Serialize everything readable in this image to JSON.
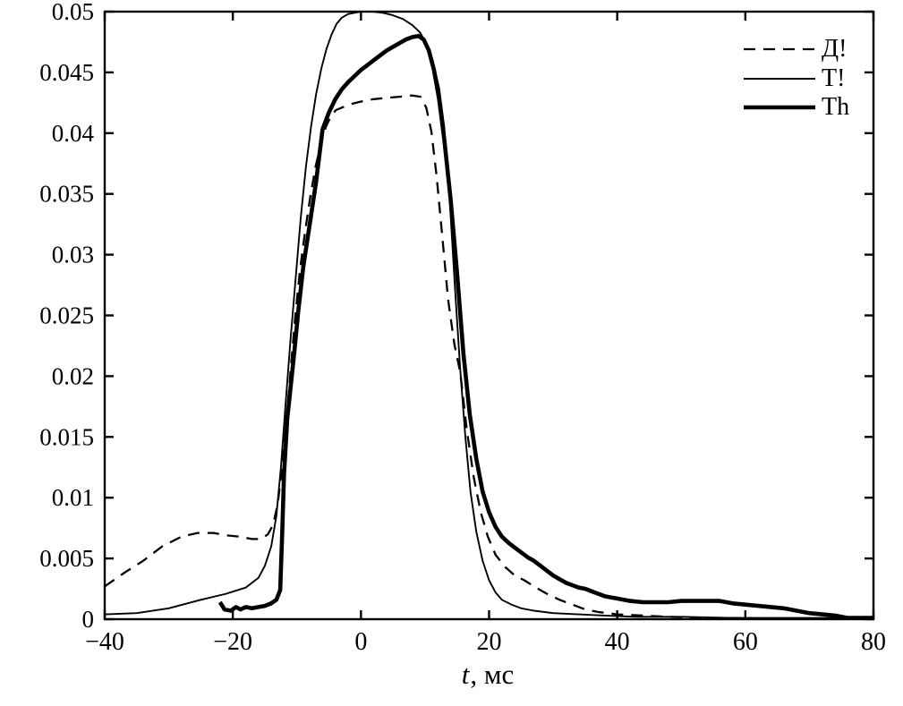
{
  "chart_data": {
    "type": "line",
    "title": "",
    "xlabel_parts": {
      "var": "t",
      "unit": ", мс"
    },
    "ylabel": "",
    "xlim": [
      -40,
      80
    ],
    "ylim": [
      0,
      0.05
    ],
    "x_ticks": [
      -40,
      -20,
      0,
      20,
      40,
      60,
      80
    ],
    "x_tick_labels": [
      "−40",
      "−20",
      "0",
      "20",
      "40",
      "60",
      "80"
    ],
    "y_ticks": [
      0,
      0.005,
      0.01,
      0.015,
      0.02,
      0.025,
      0.03,
      0.035,
      0.04,
      0.045,
      0.05
    ],
    "y_tick_labels": [
      "0",
      "0.005",
      "0.01",
      "0.015",
      "0.02",
      "0.025",
      "0.03",
      "0.035",
      "0.04",
      "0.045",
      "0.05"
    ],
    "grid": false,
    "box": true,
    "axis_color": "#000000",
    "background": "#ffffff",
    "legend": {
      "position": "top-right",
      "frame": false
    },
    "series": [
      {
        "name": "Д!",
        "line": "dashed",
        "width": 2.3,
        "color": "#000000",
        "points": [
          [
            -40,
            0.0027
          ],
          [
            -37,
            0.0038
          ],
          [
            -34,
            0.0048
          ],
          [
            -31,
            0.006
          ],
          [
            -28,
            0.0068
          ],
          [
            -25.5,
            0.0071
          ],
          [
            -23,
            0.0071
          ],
          [
            -21,
            0.0069
          ],
          [
            -19,
            0.0068
          ],
          [
            -17,
            0.0066
          ],
          [
            -15.5,
            0.0066
          ],
          [
            -14.5,
            0.007
          ],
          [
            -13.7,
            0.0078
          ],
          [
            -13,
            0.0095
          ],
          [
            -12.3,
            0.0125
          ],
          [
            -11.6,
            0.0165
          ],
          [
            -10.9,
            0.021
          ],
          [
            -10.2,
            0.0252
          ],
          [
            -9.5,
            0.0288
          ],
          [
            -8.7,
            0.032
          ],
          [
            -7.9,
            0.0348
          ],
          [
            -7.1,
            0.0372
          ],
          [
            -6.3,
            0.039
          ],
          [
            -5.5,
            0.0405
          ],
          [
            -4.7,
            0.0414
          ],
          [
            -3.9,
            0.0419
          ],
          [
            -3,
            0.0421
          ],
          [
            -1.5,
            0.0424
          ],
          [
            0,
            0.0426
          ],
          [
            2,
            0.0428
          ],
          [
            4,
            0.0429
          ],
          [
            6,
            0.043
          ],
          [
            8,
            0.0431
          ],
          [
            9.3,
            0.043
          ],
          [
            10.2,
            0.0421
          ],
          [
            11,
            0.0401
          ],
          [
            11.8,
            0.0365
          ],
          [
            12.7,
            0.0315
          ],
          [
            13.6,
            0.0263
          ],
          [
            14.6,
            0.0226
          ],
          [
            15.5,
            0.0203
          ],
          [
            16.5,
            0.0157
          ],
          [
            17.6,
            0.0117
          ],
          [
            18.7,
            0.0088
          ],
          [
            19.8,
            0.0068
          ],
          [
            21,
            0.0053
          ],
          [
            22.5,
            0.0043
          ],
          [
            24,
            0.0036
          ],
          [
            25.5,
            0.0032
          ],
          [
            27,
            0.0027
          ],
          [
            29,
            0.0021
          ],
          [
            31,
            0.0016
          ],
          [
            33,
            0.0012
          ],
          [
            35,
            0.0008
          ],
          [
            37,
            0.0006
          ],
          [
            40,
            0.0004
          ],
          [
            44,
            0.0003
          ],
          [
            48,
            0.0002
          ],
          [
            54,
            0.0001
          ],
          [
            60,
            0.0001
          ],
          [
            65,
            0
          ]
        ]
      },
      {
        "name": "Т!",
        "line": "solid",
        "width": 1.9,
        "color": "#000000",
        "points": [
          [
            -40,
            0.0004
          ],
          [
            -35,
            0.0005
          ],
          [
            -30,
            0.0009
          ],
          [
            -25,
            0.0016
          ],
          [
            -21,
            0.0021
          ],
          [
            -18,
            0.0026
          ],
          [
            -16,
            0.0034
          ],
          [
            -15,
            0.0044
          ],
          [
            -14,
            0.006
          ],
          [
            -13.2,
            0.0085
          ],
          [
            -12.5,
            0.0125
          ],
          [
            -11.8,
            0.0175
          ],
          [
            -11,
            0.023
          ],
          [
            -10.2,
            0.028
          ],
          [
            -9.4,
            0.033
          ],
          [
            -8.6,
            0.0372
          ],
          [
            -7.8,
            0.0405
          ],
          [
            -7,
            0.0432
          ],
          [
            -6.2,
            0.0453
          ],
          [
            -5.4,
            0.0469
          ],
          [
            -4.6,
            0.0481
          ],
          [
            -3.8,
            0.049
          ],
          [
            -3,
            0.0495
          ],
          [
            -2,
            0.0498
          ],
          [
            0,
            0.05
          ],
          [
            2,
            0.05
          ],
          [
            3.5,
            0.0499
          ],
          [
            5,
            0.0497
          ],
          [
            6.5,
            0.0494
          ],
          [
            8,
            0.0489
          ],
          [
            9.2,
            0.0483
          ],
          [
            10.2,
            0.0474
          ],
          [
            11.2,
            0.046
          ],
          [
            12.2,
            0.0437
          ],
          [
            13,
            0.0405
          ],
          [
            13.8,
            0.035
          ],
          [
            14.7,
            0.027
          ],
          [
            15.5,
            0.0205
          ],
          [
            16.3,
            0.015
          ],
          [
            17.1,
            0.0105
          ],
          [
            18,
            0.0072
          ],
          [
            19,
            0.0048
          ],
          [
            20,
            0.0032
          ],
          [
            21,
            0.0022
          ],
          [
            22,
            0.0016
          ],
          [
            23.5,
            0.0012
          ],
          [
            25,
            0.0009
          ],
          [
            27,
            0.0007
          ],
          [
            30,
            0.0005
          ],
          [
            34,
            0.0004
          ],
          [
            38,
            0.0003
          ],
          [
            43,
            0.0002
          ],
          [
            50,
            0.0002
          ],
          [
            58,
            0.0001
          ],
          [
            66,
            0.0001
          ],
          [
            73,
            0.0001
          ],
          [
            78,
            0
          ],
          [
            80,
            0
          ]
        ]
      },
      {
        "name": "Th",
        "line": "solid",
        "width": 4.6,
        "color": "#000000",
        "points": [
          [
            -22,
            0.0014
          ],
          [
            -21.3,
            0.0008
          ],
          [
            -20.3,
            0.0007
          ],
          [
            -19.5,
            0.001
          ],
          [
            -18.8,
            0.0008
          ],
          [
            -18,
            0.001
          ],
          [
            -17,
            0.0009
          ],
          [
            -16,
            0.001
          ],
          [
            -15,
            0.0011
          ],
          [
            -14,
            0.0013
          ],
          [
            -13.2,
            0.0016
          ],
          [
            -12.6,
            0.0024
          ],
          [
            -12.3,
            0.007
          ],
          [
            -12,
            0.012
          ],
          [
            -11.5,
            0.0165
          ],
          [
            -11,
            0.019
          ],
          [
            -10.4,
            0.022
          ],
          [
            -9.8,
            0.0253
          ],
          [
            -9,
            0.029
          ],
          [
            -8,
            0.0325
          ],
          [
            -7,
            0.036
          ],
          [
            -6,
            0.0403
          ],
          [
            -5,
            0.0417
          ],
          [
            -4,
            0.0428
          ],
          [
            -3,
            0.0436
          ],
          [
            -2,
            0.0442
          ],
          [
            -1,
            0.0447
          ],
          [
            0,
            0.0452
          ],
          [
            1,
            0.0456
          ],
          [
            2,
            0.046
          ],
          [
            3,
            0.0464
          ],
          [
            4,
            0.0468
          ],
          [
            5,
            0.0471
          ],
          [
            6,
            0.0474
          ],
          [
            7,
            0.0477
          ],
          [
            8,
            0.0479
          ],
          [
            9,
            0.048
          ],
          [
            9.8,
            0.0477
          ],
          [
            10.6,
            0.0468
          ],
          [
            11.4,
            0.0452
          ],
          [
            12.2,
            0.0428
          ],
          [
            13,
            0.0395
          ],
          [
            14,
            0.0345
          ],
          [
            15,
            0.0285
          ],
          [
            16,
            0.0218
          ],
          [
            17,
            0.0168
          ],
          [
            18,
            0.0132
          ],
          [
            19,
            0.0105
          ],
          [
            20,
            0.0088
          ],
          [
            21,
            0.0076
          ],
          [
            22,
            0.0068
          ],
          [
            23,
            0.0063
          ],
          [
            24,
            0.0059
          ],
          [
            25,
            0.0055
          ],
          [
            26,
            0.0051
          ],
          [
            27,
            0.0048
          ],
          [
            28,
            0.0044
          ],
          [
            29,
            0.004
          ],
          [
            30,
            0.0036
          ],
          [
            31,
            0.0033
          ],
          [
            32,
            0.003
          ],
          [
            33,
            0.0028
          ],
          [
            34,
            0.0026
          ],
          [
            35,
            0.0025
          ],
          [
            36,
            0.0023
          ],
          [
            37,
            0.0021
          ],
          [
            38,
            0.0019
          ],
          [
            39,
            0.0018
          ],
          [
            40,
            0.0017
          ],
          [
            41,
            0.0016
          ],
          [
            42,
            0.0015
          ],
          [
            44,
            0.0014
          ],
          [
            46,
            0.0014
          ],
          [
            48,
            0.0014
          ],
          [
            50,
            0.0015
          ],
          [
            52,
            0.0015
          ],
          [
            54,
            0.0015
          ],
          [
            56,
            0.0015
          ],
          [
            58,
            0.0013
          ],
          [
            60,
            0.0012
          ],
          [
            62,
            0.0011
          ],
          [
            64,
            0.001
          ],
          [
            66,
            0.0009
          ],
          [
            68,
            0.0007
          ],
          [
            70,
            0.0005
          ],
          [
            72,
            0.0004
          ],
          [
            74,
            0.0003
          ],
          [
            76,
            0.0001
          ],
          [
            78,
            0.0001
          ],
          [
            80,
            0.0001
          ]
        ]
      }
    ]
  }
}
